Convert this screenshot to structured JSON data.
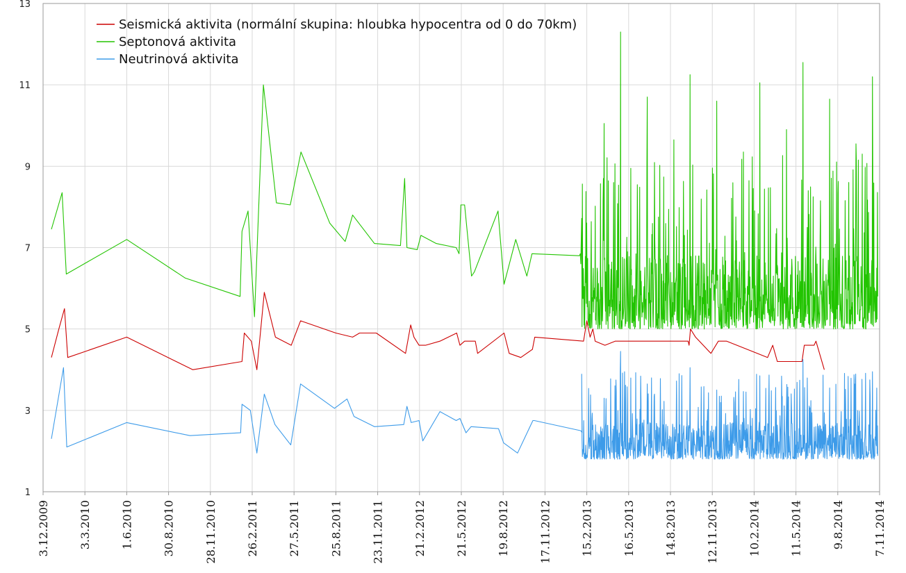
{
  "chart_data": {
    "type": "line",
    "title": "",
    "xlabel": "",
    "ylabel": "",
    "xlim": [
      "2009-12-03",
      "2014-11-07"
    ],
    "ylim": [
      1,
      13
    ],
    "y_ticks": [
      1,
      3,
      5,
      7,
      9,
      11,
      13
    ],
    "y_tick_labels": [
      "1",
      "3",
      "5",
      "7",
      "9",
      "11",
      "13"
    ],
    "x_ticks": [
      "2009-12-03",
      "2010-03-03",
      "2010-06-01",
      "2010-08-30",
      "2010-11-28",
      "2011-02-26",
      "2011-05-27",
      "2011-08-25",
      "2011-11-23",
      "2012-02-21",
      "2012-05-21",
      "2012-08-19",
      "2012-11-17",
      "2013-02-15",
      "2013-05-16",
      "2013-08-14",
      "2013-11-12",
      "2014-02-10",
      "2014-05-11",
      "2014-08-09",
      "2014-11-07"
    ],
    "x_tick_labels": [
      "3.12.2009",
      "3.3.2010",
      "1.6.2010",
      "30.8.2010",
      "28.11.2010",
      "26.2.2011",
      "27.5.2011",
      "25.8.2011",
      "23.11.2011",
      "21.2.2012",
      "21.5.2012",
      "19.8.2012",
      "17.11.2012",
      "15.2.2013",
      "16.5.2013",
      "14.8.2013",
      "12.11.2013",
      "10.2.2014",
      "11.5.2014",
      "9.8.2014",
      "7.11.2014"
    ],
    "grid": true,
    "legend_position": "top-left",
    "series": [
      {
        "name": "Seismická aktivita (normální skupina: hloubka hypocentra od 0 do 70km)",
        "color": "#cc0000",
        "x": [
          "2009-12-21",
          "2010-01-06",
          "2010-01-18",
          "2010-01-25",
          "2010-06-01",
          "2010-10-21",
          "2011-02-04",
          "2011-02-09",
          "2011-02-24",
          "2011-03-08",
          "2011-03-24",
          "2011-04-17",
          "2011-05-21",
          "2011-06-10",
          "2011-08-25",
          "2011-09-30",
          "2011-10-15",
          "2011-11-20",
          "2012-01-22",
          "2012-02-02",
          "2012-02-09",
          "2012-02-20",
          "2012-03-05",
          "2012-04-05",
          "2012-05-11",
          "2012-05-18",
          "2012-05-28",
          "2012-06-20",
          "2012-06-25",
          "2012-08-21",
          "2012-09-01",
          "2012-09-26",
          "2012-10-21",
          "2012-10-26",
          "2013-02-08",
          "2013-02-15",
          "2013-02-22",
          "2013-02-28",
          "2013-03-05",
          "2013-03-26",
          "2013-04-17",
          "2013-09-21",
          "2013-09-23",
          "2013-09-26",
          "2013-10-07",
          "2013-11-09",
          "2013-11-25",
          "2013-12-13",
          "2014-03-11",
          "2014-03-22",
          "2014-04-01",
          "2014-05-24",
          "2014-05-29",
          "2014-06-19",
          "2014-06-23",
          "2014-07-11"
        ],
        "y": [
          4.3,
          5.0,
          5.5,
          4.3,
          4.8,
          4.0,
          4.2,
          4.9,
          4.7,
          4.0,
          5.9,
          4.8,
          4.6,
          5.2,
          4.9,
          4.8,
          4.9,
          4.9,
          4.4,
          5.1,
          4.8,
          4.6,
          4.6,
          4.7,
          4.9,
          4.6,
          4.7,
          4.7,
          4.4,
          4.9,
          4.4,
          4.3,
          4.5,
          4.8,
          4.7,
          5.2,
          4.8,
          5.0,
          4.7,
          4.6,
          4.7,
          4.7,
          4.6,
          5.0,
          4.8,
          4.4,
          4.7,
          4.7,
          4.3,
          4.6,
          4.2,
          4.2,
          4.6,
          4.6,
          4.7,
          4.0
        ]
      },
      {
        "name": "Septonová aktivita",
        "color": "#22c400",
        "x": [
          "2009-12-21",
          "2010-01-13",
          "2010-01-22",
          "2010-06-01",
          "2010-10-05",
          "2011-01-31",
          "2011-02-04",
          "2011-02-17",
          "2011-03-03",
          "2011-03-22",
          "2011-04-19",
          "2011-05-19",
          "2011-06-11",
          "2011-08-12",
          "2011-09-14",
          "2011-09-30",
          "2011-11-16",
          "2012-01-11",
          "2012-01-20",
          "2012-01-25",
          "2012-02-16",
          "2012-02-24",
          "2012-03-28",
          "2012-05-10",
          "2012-05-16",
          "2012-05-20",
          "2012-05-28",
          "2012-06-12",
          "2012-06-18",
          "2012-08-08",
          "2012-08-21",
          "2012-09-15",
          "2012-10-09",
          "2012-10-20",
          "2013-01-30",
          "2013-02-01",
          "2013-02-02"
        ],
        "y": [
          7.45,
          8.35,
          6.35,
          7.2,
          6.25,
          5.8,
          7.4,
          7.9,
          5.3,
          11.0,
          8.1,
          8.05,
          9.35,
          7.6,
          7.15,
          7.8,
          7.1,
          7.05,
          8.7,
          7.0,
          6.95,
          7.3,
          7.1,
          7.0,
          6.85,
          8.05,
          8.05,
          6.3,
          6.4,
          7.9,
          6.1,
          7.2,
          6.3,
          6.85,
          6.8,
          6.85,
          6.6
        ]
      },
      {
        "name": "Neutrinová aktivita",
        "color": "#3d9be9",
        "x": [
          "2009-12-21",
          "2010-01-16",
          "2010-01-23",
          "2010-06-01",
          "2010-10-15",
          "2011-02-01",
          "2011-02-04",
          "2011-02-22",
          "2011-03-08",
          "2011-03-24",
          "2011-04-16",
          "2011-05-20",
          "2011-06-10",
          "2011-08-22",
          "2011-09-18",
          "2011-10-03",
          "2011-11-16",
          "2012-01-18",
          "2012-01-25",
          "2012-02-03",
          "2012-02-20",
          "2012-02-28",
          "2012-04-05",
          "2012-05-10",
          "2012-05-18",
          "2012-05-31",
          "2012-06-11",
          "2012-08-09",
          "2012-08-20",
          "2012-09-19",
          "2012-10-22",
          "2012-10-25",
          "2013-02-02",
          "2013-02-05"
        ],
        "y": [
          2.3,
          4.05,
          2.1,
          2.7,
          2.38,
          2.45,
          3.15,
          3.0,
          1.95,
          3.4,
          2.65,
          2.15,
          3.65,
          3.05,
          3.28,
          2.85,
          2.6,
          2.65,
          3.1,
          2.7,
          2.75,
          2.25,
          2.97,
          2.75,
          2.8,
          2.45,
          2.6,
          2.55,
          2.2,
          1.95,
          2.75,
          2.75,
          2.5,
          2.45
        ]
      }
    ],
    "dense_period": {
      "start": "2013-02-04",
      "end": "2014-11-03",
      "septon_band": [
        5.0,
        6.8
      ],
      "septon_peaks": [
        12.3,
        11.55,
        11.25,
        11.2,
        11.05,
        10.7,
        10.65,
        10.6,
        10.05,
        9.9,
        9.65,
        9.55,
        9.35,
        8.95,
        8.25
      ],
      "neutrino_band": [
        1.8,
        2.7
      ],
      "neutrino_peaks": [
        4.45,
        4.25,
        4.05,
        3.95,
        3.85,
        3.65,
        3.55,
        3.5,
        3.3,
        3.1
      ]
    }
  }
}
